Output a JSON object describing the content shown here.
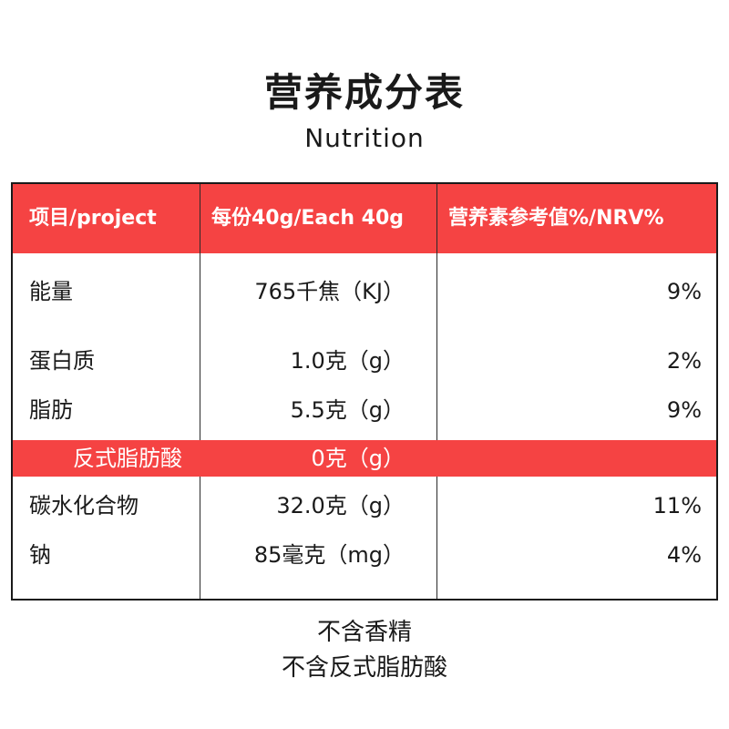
{
  "title": "营养成分表",
  "subtitle": "Nutrition",
  "table": {
    "headers": [
      "项目/project",
      "每份40g/Each 40g",
      "营养素参考值%/NRV%"
    ],
    "rows": [
      {
        "item": "能量",
        "per_serving": "765千焦（KJ）",
        "nrv": "9%"
      },
      {
        "item": "蛋白质",
        "per_serving": "1.0克（g）",
        "nrv": "2%"
      },
      {
        "item": "脂肪",
        "per_serving": "5.5克（g）",
        "nrv": "9%"
      },
      {
        "item": "反式脂肪酸",
        "per_serving": "0克（g）",
        "nrv": ""
      },
      {
        "item": "碳水化合物",
        "per_serving": "32.0克（g）",
        "nrv": "11%"
      },
      {
        "item": "钠",
        "per_serving": "85毫克（mg）",
        "nrv": "4%"
      }
    ]
  },
  "notes": [
    "不含香精",
    "不含反式脂肪酸"
  ],
  "colors": {
    "accent": "#f54343",
    "border": "#1a1a1a"
  }
}
